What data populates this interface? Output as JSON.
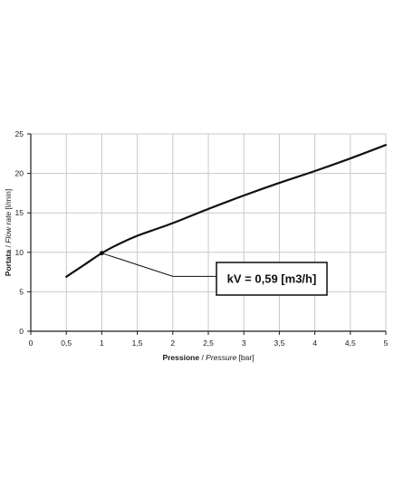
{
  "chart_data": {
    "type": "line",
    "xlabel_bold": "Pressione",
    "xlabel_sep": " / ",
    "xlabel_italic": "Pressure",
    "xlabel_unit": " [bar]",
    "ylabel_bold": "Portata",
    "ylabel_sep": " / ",
    "ylabel_italic": "Flow rate",
    "ylabel_unit": " [l/min]",
    "xlim": [
      0,
      5
    ],
    "ylim": [
      0,
      25
    ],
    "x_ticks": [
      "0",
      "0,5",
      "1",
      "1,5",
      "2",
      "2,5",
      "3",
      "3,5",
      "4",
      "4,5",
      "5"
    ],
    "y_ticks": [
      "0",
      "5",
      "10",
      "15",
      "20",
      "25"
    ],
    "grid": true,
    "series": [
      {
        "x": [
          0.5,
          0.75,
          1.0,
          1.25,
          1.5,
          1.75,
          2.0,
          2.5,
          3.0,
          3.5,
          4.0,
          4.5,
          5.0
        ],
        "y": [
          6.9,
          8.4,
          9.9,
          11.1,
          12.1,
          12.9,
          13.7,
          15.5,
          17.2,
          18.8,
          20.3,
          21.9,
          23.6
        ]
      }
    ],
    "annotation": {
      "text": "kV = 0,59 [m3/h]",
      "point": [
        1.0,
        9.9
      ],
      "elbow": [
        2.0,
        6.95
      ]
    },
    "colors": {
      "line": "#111111",
      "grid": "#c8c8c8",
      "axis": "#1a1a1a"
    }
  }
}
